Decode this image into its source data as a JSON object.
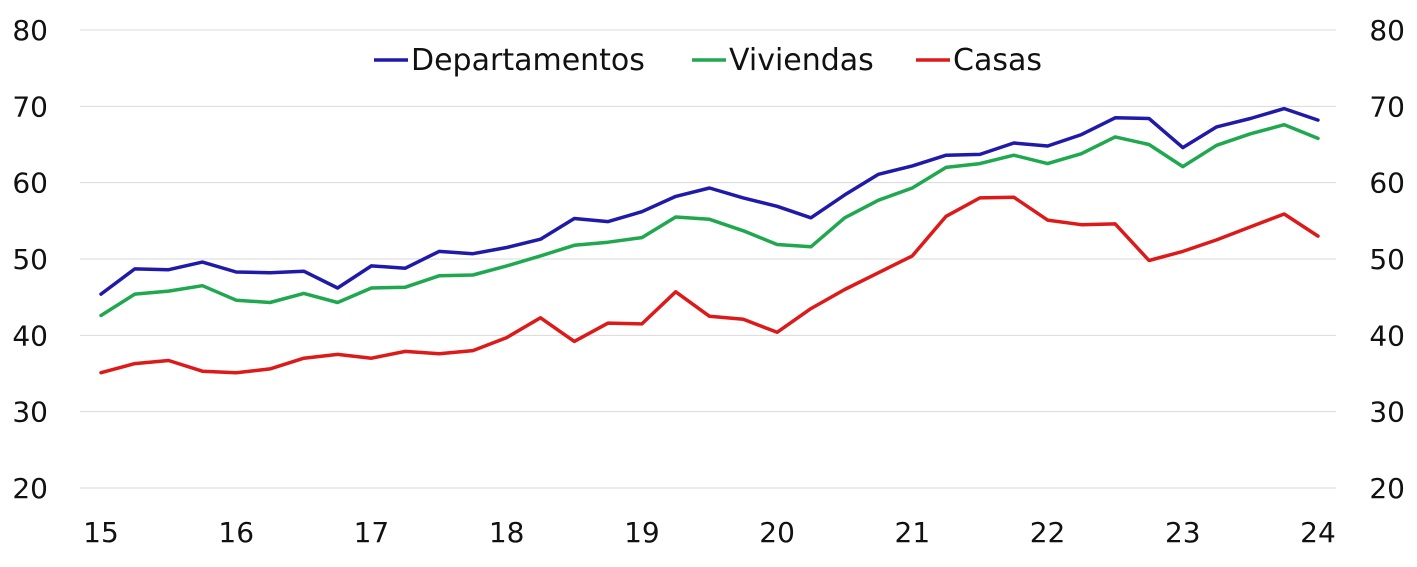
{
  "chart_data": {
    "type": "line",
    "title": "",
    "xlabel": "",
    "ylabel": "",
    "ylim": [
      20,
      80
    ],
    "xlim": [
      15,
      24
    ],
    "y_ticks": [
      "20",
      "30",
      "40",
      "50",
      "60",
      "70",
      "80"
    ],
    "x_ticks": [
      "15",
      "16",
      "17",
      "18",
      "19",
      "20",
      "21",
      "22",
      "23",
      "24"
    ],
    "grid": true,
    "legend": "top-center",
    "x": [
      15.0,
      15.25,
      15.5,
      15.75,
      16.0,
      16.25,
      16.5,
      16.75,
      17.0,
      17.25,
      17.5,
      17.75,
      18.0,
      18.25,
      18.5,
      18.75,
      19.0,
      19.25,
      19.5,
      19.75,
      20.0,
      20.25,
      20.5,
      20.75,
      21.0,
      21.25,
      21.5,
      21.75,
      22.0,
      22.25,
      22.5,
      22.75,
      23.0,
      23.25,
      23.5,
      23.75,
      24.0
    ],
    "series": [
      {
        "name": "Departamentos",
        "color": "#1f1aa8",
        "values": [
          45.4,
          48.7,
          48.6,
          49.6,
          48.3,
          48.2,
          48.4,
          46.2,
          49.1,
          48.8,
          51.0,
          50.7,
          51.5,
          52.6,
          55.3,
          54.9,
          56.2,
          58.2,
          59.3,
          58.0,
          56.9,
          55.4,
          58.4,
          61.1,
          62.2,
          63.6,
          63.7,
          65.2,
          64.8,
          66.3,
          68.5,
          68.4,
          64.6,
          67.3,
          68.4,
          69.7,
          68.2
        ]
      },
      {
        "name": "Viviendas",
        "color": "#1fa84f",
        "values": [
          42.6,
          45.4,
          45.8,
          46.5,
          44.6,
          44.3,
          45.5,
          44.3,
          46.2,
          46.3,
          47.8,
          47.9,
          49.1,
          50.4,
          51.8,
          52.2,
          52.8,
          55.5,
          55.2,
          53.7,
          51.9,
          51.6,
          55.4,
          57.7,
          59.3,
          62.0,
          62.5,
          63.6,
          62.5,
          63.8,
          66.0,
          65.0,
          62.1,
          64.9,
          66.4,
          67.6,
          65.8
        ]
      },
      {
        "name": "Casas",
        "color": "#dd1a1a",
        "values": [
          35.1,
          36.3,
          36.7,
          35.3,
          35.1,
          35.6,
          37.0,
          37.5,
          37.0,
          37.9,
          37.6,
          38.0,
          39.7,
          42.3,
          39.2,
          41.6,
          41.5,
          45.7,
          42.5,
          42.1,
          40.4,
          43.5,
          46.0,
          48.2,
          50.4,
          55.6,
          58.0,
          58.1,
          55.1,
          54.5,
          54.6,
          49.8,
          51.0,
          52.5,
          54.2,
          55.9,
          53.0
        ]
      }
    ]
  }
}
